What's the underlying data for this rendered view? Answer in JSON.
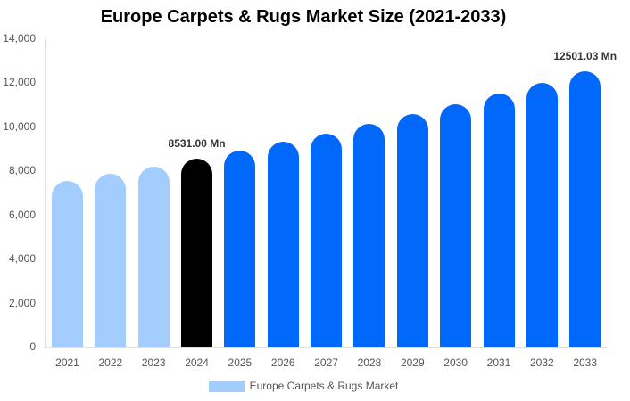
{
  "chart_data": {
    "type": "bar",
    "title": "Europe Carpets & Rugs Market Size (2021-2033)",
    "xlabel": "",
    "ylabel": "",
    "ylim": [
      0,
      14000
    ],
    "yticks": [
      0,
      2000,
      4000,
      6000,
      8000,
      10000,
      12000,
      14000
    ],
    "ytick_labels": [
      "0",
      "2,000",
      "4,000",
      "6,000",
      "8,000",
      "10,000",
      "12,000",
      "14,000"
    ],
    "grid": false,
    "legend_position": "bottom",
    "categories": [
      "2021",
      "2022",
      "2023",
      "2024",
      "2025",
      "2026",
      "2027",
      "2028",
      "2029",
      "2030",
      "2031",
      "2032",
      "2033"
    ],
    "series": [
      {
        "name": "Europe Carpets & Rugs Market",
        "values": [
          7510,
          7836,
          8176,
          8531,
          8901,
          9288,
          9691,
          10112,
          10551,
          11009,
          11487,
          11986,
          12501.03
        ],
        "colors": [
          "#a3cdfd",
          "#a3cdfd",
          "#a3cdfd",
          "#000000",
          "#0068fa",
          "#0068fa",
          "#0068fa",
          "#0068fa",
          "#0068fa",
          "#0068fa",
          "#0068fa",
          "#0068fa",
          "#0068fa"
        ]
      }
    ],
    "annotations": [
      {
        "category": "2024",
        "text": "8531.00 Mn"
      },
      {
        "category": "2033",
        "text": "12501.03 Mn"
      }
    ]
  },
  "legend": {
    "label": "Europe Carpets & Rugs Market",
    "color": "#a3cdfd"
  }
}
